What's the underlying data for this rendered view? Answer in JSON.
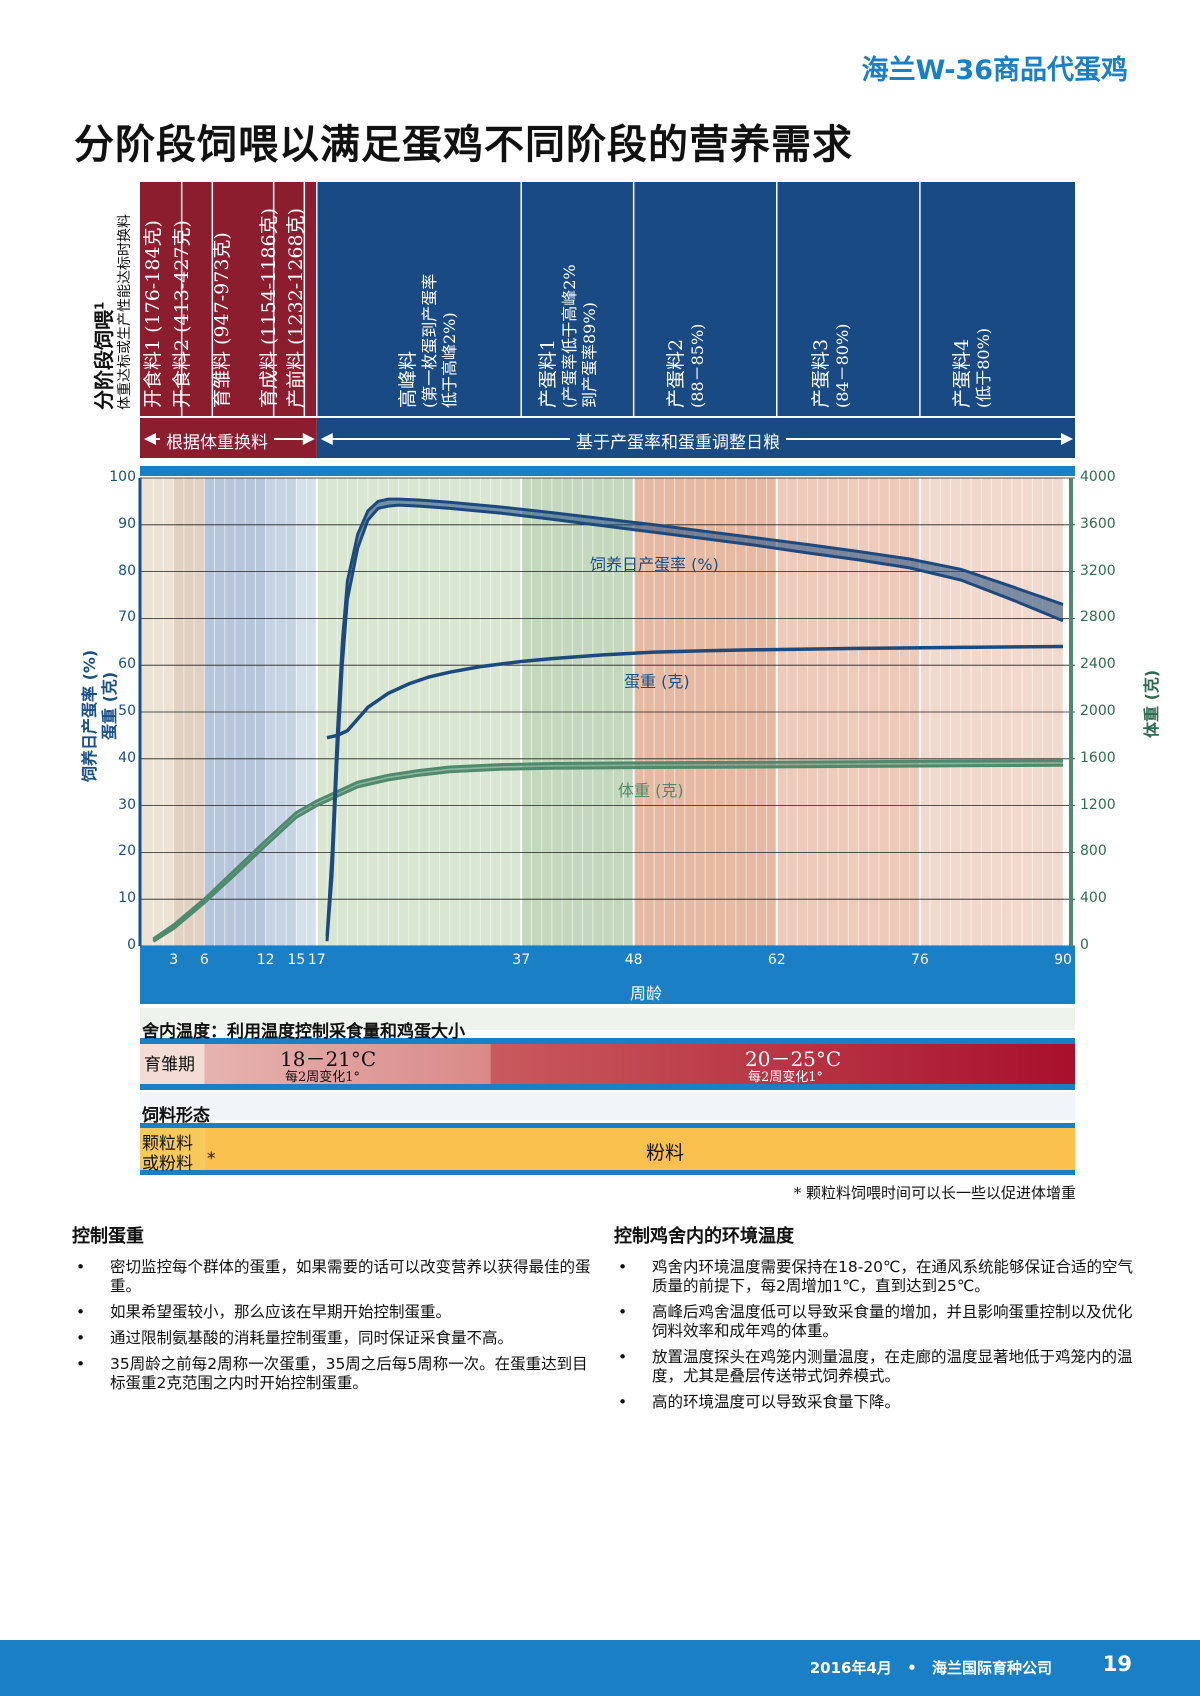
{
  "header": {
    "brand": "海兰W-36商品代蛋鸡",
    "title": "分阶段饲喂以满足蛋鸡不同阶段的营养需求"
  },
  "feeding": {
    "side_title": "分阶段饲喂",
    "side_sup": "1",
    "side_sub": "体重达标或生产性能达标时换料",
    "stages": [
      {
        "label": "开食料1 (176-184克)"
      },
      {
        "label": "开食料2 (413-427克)"
      },
      {
        "label": "育雏料 (947-973克)"
      },
      {
        "label": "育成料 (1154-1186克)"
      },
      {
        "label": "产前料 (1232-1268克)"
      },
      {
        "label": "高峰料",
        "sub1": "(第一枚蛋到产蛋率",
        "sub2": "低于高峰2%)"
      },
      {
        "label": "产蛋料1",
        "sub1": "(产蛋率低于高峰2%",
        "sub2": "到产蛋率89%)"
      },
      {
        "label": "产蛋料2",
        "sub1": "(88－85%)"
      },
      {
        "label": "产蛋料3",
        "sub1": "(84－80%)"
      },
      {
        "label": "产蛋料4",
        "sub1": "(低于80%)"
      }
    ],
    "arrow_left": "根据体重换料",
    "arrow_right": "基于产蛋率和蛋重调整日粮"
  },
  "chart_data": {
    "type": "line",
    "xlabel": "周龄",
    "ylabel_left_1": "饲养日产蛋率 (%)",
    "ylabel_left_2": "蛋重 (克)",
    "ylabel_right": "体重 (克)",
    "x_ticks": [
      3,
      6,
      12,
      15,
      17,
      37,
      48,
      62,
      76,
      90
    ],
    "y_left_ticks": [
      0,
      10,
      20,
      30,
      40,
      50,
      60,
      70,
      80,
      90,
      100
    ],
    "y_right_ticks": [
      0,
      400,
      800,
      1200,
      1600,
      2000,
      2400,
      2800,
      3200,
      3600,
      4000
    ],
    "xlim": [
      0,
      90
    ],
    "ylim_left": [
      0,
      100
    ],
    "ylim_right": [
      0,
      4000
    ],
    "series": [
      {
        "name": "饲养日产蛋率 (%)",
        "color": "#1d4a7e",
        "x": [
          18,
          18.5,
          19,
          19.5,
          20,
          21,
          22,
          23,
          24,
          25,
          27,
          30,
          35,
          40,
          45,
          50,
          55,
          60,
          65,
          70,
          75,
          80,
          85,
          90
        ],
        "upper": [
          2,
          20,
          45,
          65,
          78,
          88,
          93,
          95,
          95.5,
          95.5,
          95.3,
          94.8,
          93.8,
          92.6,
          91.3,
          90,
          88.6,
          87.2,
          85.8,
          84.3,
          82.7,
          80.5,
          76.8,
          73
        ],
        "lower": [
          1,
          15,
          40,
          60,
          74,
          85,
          91,
          93.5,
          94,
          94.2,
          94,
          93.5,
          92.5,
          91.2,
          89.8,
          88.4,
          87,
          85.6,
          84,
          82.5,
          80.8,
          78.2,
          74,
          69.5
        ]
      },
      {
        "name": "蛋重 (克)",
        "color": "#1d4a7e",
        "x": [
          18,
          19,
          20,
          21,
          22,
          24,
          26,
          28,
          30,
          33,
          37,
          40,
          45,
          50,
          55,
          60,
          70,
          80,
          90
        ],
        "y": [
          44.5,
          45,
          46,
          48.5,
          51,
          54,
          56,
          57.5,
          58.5,
          59.7,
          60.8,
          61.4,
          62.2,
          62.8,
          63.1,
          63.3,
          63.6,
          63.8,
          64
        ]
      },
      {
        "name": "体重 (克)",
        "color": "#4f8a6e",
        "x": [
          1,
          3,
          6,
          9,
          12,
          15,
          17,
          19,
          21,
          24,
          27,
          30,
          35,
          40,
          48,
          60,
          70,
          80,
          90
        ],
        "upper": [
          60,
          180,
          400,
          650,
          900,
          1140,
          1240,
          1320,
          1400,
          1460,
          1500,
          1530,
          1550,
          1560,
          1565,
          1570,
          1575,
          1580,
          1585
        ],
        "lower": [
          40,
          150,
          370,
          610,
          860,
          1100,
          1200,
          1280,
          1360,
          1420,
          1460,
          1490,
          1510,
          1520,
          1525,
          1530,
          1535,
          1540,
          1545
        ]
      }
    ],
    "annotations": [
      {
        "text": "饲养日产蛋率 (%)",
        "x": 48,
        "y": 81
      },
      {
        "text": "蛋重 (克)",
        "x": 52,
        "y": 56
      },
      {
        "text": "体重 (克)",
        "x": 46,
        "y": 33
      }
    ]
  },
  "temperature": {
    "title": "舍内温度：利用温度控制采食量和鸡蛋大小",
    "period_label": "育雏期",
    "range1": "18－21°C",
    "range1_sub": "每2周变化1°",
    "range2": "20－25°C",
    "range2_sub": "每2周变化1°"
  },
  "feed_form": {
    "title": "饲料形态",
    "left_label_1": "颗粒料",
    "left_label_2": "或粉料",
    "asterisk": "*",
    "main_label": "粉料",
    "footnote": "* 颗粒料饲喂时间可以长一些以促进体增重"
  },
  "left_col": {
    "title": "控制蛋重",
    "items": [
      "密切监控每个群体的蛋重，如果需要的话可以改变营养以获得最佳的蛋重。",
      "如果希望蛋较小，那么应该在早期开始控制蛋重。",
      "通过限制氨基酸的消耗量控制蛋重，同时保证采食量不高。",
      "35周龄之前每2周称一次蛋重，35周之后每5周称一次。在蛋重达到目标蛋重2克范围之内时开始控制蛋重。"
    ]
  },
  "right_col": {
    "title": "控制鸡舍内的环境温度",
    "items": [
      "鸡舍内环境温度需要保持在18-20℃，在通风系统能够保证合适的空气质量的前提下，每2周增加1℃，直到达到25℃。",
      "高峰后鸡舍温度低可以导致采食量的增加，并且影响蛋重控制以及优化饲料效率和成年鸡的体重。",
      "放置温度探头在鸡笼内测量温度，在走廊的温度显著地低于鸡笼内的温度，尤其是叠层传送带式饲养模式。",
      "高的环境温度可以导致采食量下降。"
    ]
  },
  "footer": {
    "date": "2016年4月",
    "sep": "•",
    "company": "海兰国际育种公司",
    "page": "19"
  }
}
